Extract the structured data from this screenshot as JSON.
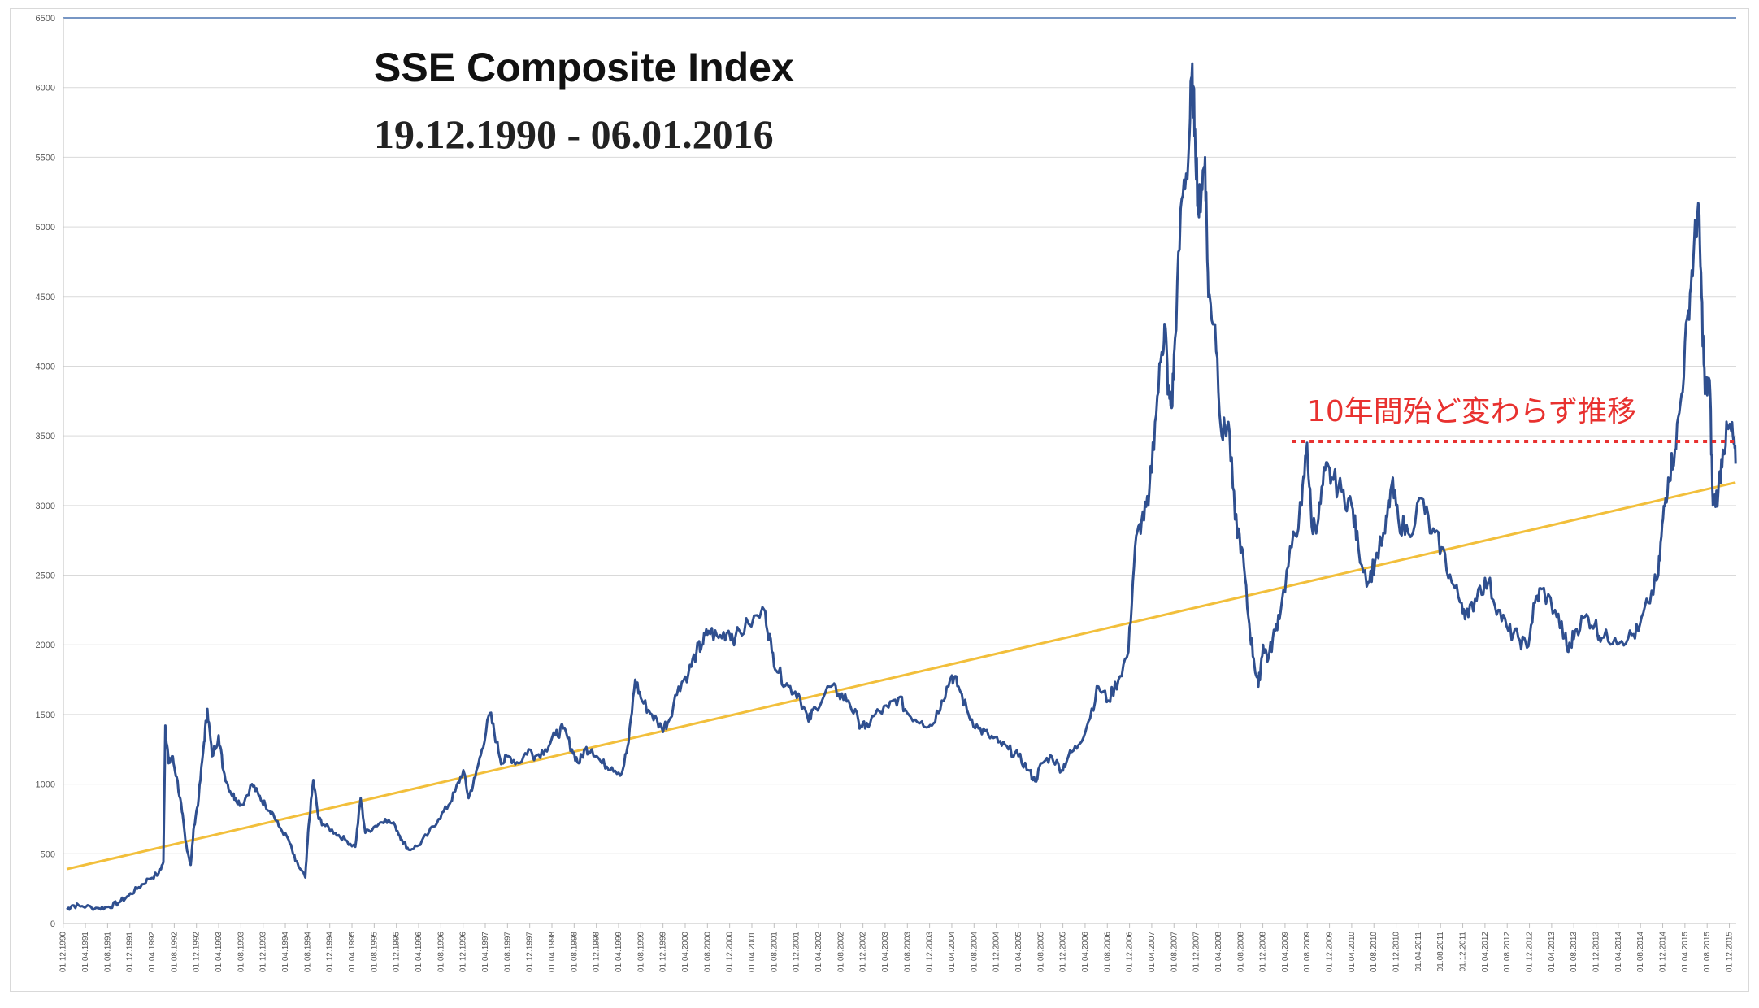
{
  "chart_data": {
    "type": "line",
    "title": "SSE Composite Index",
    "subtitle": "19.12.1990 - 06.01.2016",
    "xlabel": "",
    "ylabel": "",
    "ylim": [
      0,
      6500
    ],
    "y_ticks": [
      0,
      500,
      1000,
      1500,
      2000,
      2500,
      3000,
      3500,
      4000,
      4500,
      5000,
      5500,
      6000,
      6500
    ],
    "x_ticks": [
      "01.12.1990",
      "01.04.1991",
      "01.08.1991",
      "01.12.1991",
      "01.04.1992",
      "01.08.1992",
      "01.12.1992",
      "01.04.1993",
      "01.08.1993",
      "01.12.1993",
      "01.04.1994",
      "01.08.1994",
      "01.12.1994",
      "01.04.1995",
      "01.08.1995",
      "01.12.1995",
      "01.04.1996",
      "01.08.1996",
      "01.12.1996",
      "01.04.1997",
      "01.08.1997",
      "01.12.1997",
      "01.04.1998",
      "01.08.1998",
      "01.12.1998",
      "01.04.1999",
      "01.08.1999",
      "01.12.1999",
      "01.04.2000",
      "01.08.2000",
      "01.12.2000",
      "01.04.2001",
      "01.08.2001",
      "01.12.2001",
      "01.04.2002",
      "01.08.2002",
      "01.12.2002",
      "01.04.2003",
      "01.08.2003",
      "01.12.2003",
      "01.04.2004",
      "01.08.2004",
      "01.12.2004",
      "01.04.2005",
      "01.08.2005",
      "01.12.2005",
      "01.04.2006",
      "01.08.2006",
      "01.12.2006",
      "01.04.2007",
      "01.08.2007",
      "01.12.2007",
      "01.04.2008",
      "01.08.2008",
      "01.12.2008",
      "01.04.2009",
      "01.08.2009",
      "01.12.2009",
      "01.04.2010",
      "01.08.2010",
      "01.12.2010",
      "01.04.2011",
      "01.08.2011",
      "01.12.2011",
      "01.04.2012",
      "01.08.2012",
      "01.12.2012",
      "01.04.2013",
      "01.08.2013",
      "01.12.2013",
      "01.04.2014",
      "01.08.2014",
      "01.12.2014",
      "01.04.2015",
      "01.08.2015",
      "01.12.2015"
    ],
    "x_range": [
      1990.92,
      2016.02
    ],
    "grid": "horizontal",
    "series": [
      {
        "color": "#2f4f8f",
        "points": [
          [
            1990.97,
            100
          ],
          [
            1991.05,
            130
          ],
          [
            1991.2,
            125
          ],
          [
            1991.45,
            110
          ],
          [
            1991.6,
            120
          ],
          [
            1991.75,
            150
          ],
          [
            1991.9,
            200
          ],
          [
            1992.05,
            260
          ],
          [
            1992.2,
            320
          ],
          [
            1992.35,
            360
          ],
          [
            1992.42,
            440
          ],
          [
            1992.45,
            1420
          ],
          [
            1992.5,
            1150
          ],
          [
            1992.55,
            1200
          ],
          [
            1992.62,
            1050
          ],
          [
            1992.7,
            800
          ],
          [
            1992.75,
            600
          ],
          [
            1992.83,
            420
          ],
          [
            1992.88,
            700
          ],
          [
            1992.95,
            900
          ],
          [
            1993.03,
            1300
          ],
          [
            1993.08,
            1540
          ],
          [
            1993.15,
            1200
          ],
          [
            1993.25,
            1350
          ],
          [
            1993.32,
            1100
          ],
          [
            1993.42,
            950
          ],
          [
            1993.5,
            900
          ],
          [
            1993.6,
            850
          ],
          [
            1993.75,
            1000
          ],
          [
            1993.85,
            920
          ],
          [
            1993.95,
            850
          ],
          [
            1994.05,
            800
          ],
          [
            1994.15,
            700
          ],
          [
            1994.3,
            600
          ],
          [
            1994.4,
            450
          ],
          [
            1994.55,
            330
          ],
          [
            1994.6,
            700
          ],
          [
            1994.67,
            1030
          ],
          [
            1994.75,
            750
          ],
          [
            1994.85,
            700
          ],
          [
            1995.0,
            650
          ],
          [
            1995.15,
            600
          ],
          [
            1995.3,
            550
          ],
          [
            1995.38,
            900
          ],
          [
            1995.45,
            650
          ],
          [
            1995.6,
            700
          ],
          [
            1995.75,
            750
          ],
          [
            1995.9,
            700
          ],
          [
            1996.0,
            600
          ],
          [
            1996.1,
            530
          ],
          [
            1996.25,
            560
          ],
          [
            1996.4,
            650
          ],
          [
            1996.55,
            750
          ],
          [
            1996.7,
            850
          ],
          [
            1996.8,
            950
          ],
          [
            1996.92,
            1100
          ],
          [
            1997.0,
            900
          ],
          [
            1997.1,
            1050
          ],
          [
            1997.2,
            1250
          ],
          [
            1997.32,
            1510
          ],
          [
            1997.42,
            1300
          ],
          [
            1997.5,
            1150
          ],
          [
            1997.6,
            1200
          ],
          [
            1997.75,
            1150
          ],
          [
            1997.9,
            1250
          ],
          [
            1998.0,
            1200
          ],
          [
            1998.15,
            1250
          ],
          [
            1998.3,
            1350
          ],
          [
            1998.42,
            1400
          ],
          [
            1998.55,
            1250
          ],
          [
            1998.65,
            1150
          ],
          [
            1998.75,
            1250
          ],
          [
            1998.85,
            1250
          ],
          [
            1999.0,
            1150
          ],
          [
            1999.15,
            1120
          ],
          [
            1999.3,
            1080
          ],
          [
            1999.4,
            1300
          ],
          [
            1999.5,
            1750
          ],
          [
            1999.6,
            1600
          ],
          [
            1999.75,
            1500
          ],
          [
            1999.9,
            1400
          ],
          [
            2000.0,
            1450
          ],
          [
            2000.15,
            1700
          ],
          [
            2000.3,
            1800
          ],
          [
            2000.42,
            1950
          ],
          [
            2000.5,
            2000
          ],
          [
            2000.6,
            2100
          ],
          [
            2000.75,
            2050
          ],
          [
            2000.9,
            2100
          ],
          [
            2001.0,
            2050
          ],
          [
            2001.2,
            2150
          ],
          [
            2001.45,
            2240
          ],
          [
            2001.55,
            1950
          ],
          [
            2001.65,
            1800
          ],
          [
            2001.8,
            1700
          ],
          [
            2001.95,
            1650
          ],
          [
            2002.1,
            1450
          ],
          [
            2002.2,
            1550
          ],
          [
            2002.42,
            1700
          ],
          [
            2002.55,
            1650
          ],
          [
            2002.7,
            1600
          ],
          [
            2002.85,
            1450
          ],
          [
            2002.95,
            1400
          ],
          [
            2003.1,
            1500
          ],
          [
            2003.3,
            1550
          ],
          [
            2003.45,
            1620
          ],
          [
            2003.6,
            1500
          ],
          [
            2003.8,
            1450
          ],
          [
            2003.95,
            1420
          ],
          [
            2004.1,
            1600
          ],
          [
            2004.25,
            1780
          ],
          [
            2004.35,
            1700
          ],
          [
            2004.5,
            1500
          ],
          [
            2004.65,
            1400
          ],
          [
            2004.8,
            1350
          ],
          [
            2004.95,
            1300
          ],
          [
            2005.1,
            1250
          ],
          [
            2005.25,
            1200
          ],
          [
            2005.4,
            1100
          ],
          [
            2005.5,
            1020
          ],
          [
            2005.6,
            1150
          ],
          [
            2005.75,
            1200
          ],
          [
            2005.9,
            1100
          ],
          [
            2006.0,
            1200
          ],
          [
            2006.15,
            1280
          ],
          [
            2006.3,
            1450
          ],
          [
            2006.45,
            1700
          ],
          [
            2006.6,
            1600
          ],
          [
            2006.75,
            1750
          ],
          [
            2006.9,
            1950
          ],
          [
            2007.0,
            2700
          ],
          [
            2007.1,
            2900
          ],
          [
            2007.2,
            3000
          ],
          [
            2007.3,
            3600
          ],
          [
            2007.4,
            4100
          ],
          [
            2007.45,
            4300
          ],
          [
            2007.5,
            3800
          ],
          [
            2007.55,
            3700
          ],
          [
            2007.6,
            4200
          ],
          [
            2007.7,
            5200
          ],
          [
            2007.8,
            5500
          ],
          [
            2007.85,
            6080
          ],
          [
            2007.9,
            5700
          ],
          [
            2007.95,
            5100
          ],
          [
            2008.0,
            5300
          ],
          [
            2008.05,
            5500
          ],
          [
            2008.1,
            4500
          ],
          [
            2008.2,
            4300
          ],
          [
            2008.3,
            3500
          ],
          [
            2008.4,
            3600
          ],
          [
            2008.5,
            2900
          ],
          [
            2008.6,
            2700
          ],
          [
            2008.7,
            2200
          ],
          [
            2008.78,
            1900
          ],
          [
            2008.85,
            1700
          ],
          [
            2008.92,
            2000
          ],
          [
            2009.0,
            1900
          ],
          [
            2009.1,
            2100
          ],
          [
            2009.2,
            2300
          ],
          [
            2009.35,
            2700
          ],
          [
            2009.5,
            3000
          ],
          [
            2009.58,
            3450
          ],
          [
            2009.65,
            2850
          ],
          [
            2009.75,
            2900
          ],
          [
            2009.85,
            3250
          ],
          [
            2009.95,
            3200
          ],
          [
            2010.1,
            3100
          ],
          [
            2010.25,
            3000
          ],
          [
            2010.35,
            2700
          ],
          [
            2010.5,
            2450
          ],
          [
            2010.6,
            2600
          ],
          [
            2010.75,
            2800
          ],
          [
            2010.85,
            3150
          ],
          [
            2010.95,
            2900
          ],
          [
            2011.1,
            2800
          ],
          [
            2011.3,
            3050
          ],
          [
            2011.45,
            2800
          ],
          [
            2011.6,
            2700
          ],
          [
            2011.75,
            2450
          ],
          [
            2011.9,
            2300
          ],
          [
            2012.0,
            2200
          ],
          [
            2012.15,
            2400
          ],
          [
            2012.3,
            2450
          ],
          [
            2012.45,
            2250
          ],
          [
            2012.6,
            2100
          ],
          [
            2012.75,
            2050
          ],
          [
            2012.88,
            1980
          ],
          [
            2013.0,
            2300
          ],
          [
            2013.1,
            2400
          ],
          [
            2013.3,
            2250
          ],
          [
            2013.45,
            2050
          ],
          [
            2013.5,
            1950
          ],
          [
            2013.6,
            2100
          ],
          [
            2013.75,
            2200
          ],
          [
            2013.9,
            2150
          ],
          [
            2014.0,
            2050
          ],
          [
            2014.2,
            2050
          ],
          [
            2014.4,
            2050
          ],
          [
            2014.55,
            2100
          ],
          [
            2014.7,
            2300
          ],
          [
            2014.85,
            2500
          ],
          [
            2014.92,
            2900
          ],
          [
            2015.0,
            3200
          ],
          [
            2015.1,
            3400
          ],
          [
            2015.2,
            3800
          ],
          [
            2015.3,
            4400
          ],
          [
            2015.38,
            4800
          ],
          [
            2015.45,
            5170
          ],
          [
            2015.5,
            4500
          ],
          [
            2015.55,
            3800
          ],
          [
            2015.62,
            3900
          ],
          [
            2015.67,
            3000
          ],
          [
            2015.75,
            3100
          ],
          [
            2015.82,
            3400
          ],
          [
            2015.9,
            3550
          ],
          [
            2015.97,
            3500
          ],
          [
            2016.01,
            3300
          ]
        ]
      },
      {
        "color": "#f2bf3b",
        "points": [
          [
            1990.97,
            390
          ],
          [
            2016.01,
            3165
          ]
        ]
      }
    ],
    "reference_line": {
      "y": 3460,
      "x_start": 2009.35,
      "x_end": 2016.02,
      "color": "#e8312f",
      "style": "dotted"
    },
    "annotation": {
      "text": "10年間殆ど変わらず推移",
      "color": "#e8312f"
    }
  }
}
